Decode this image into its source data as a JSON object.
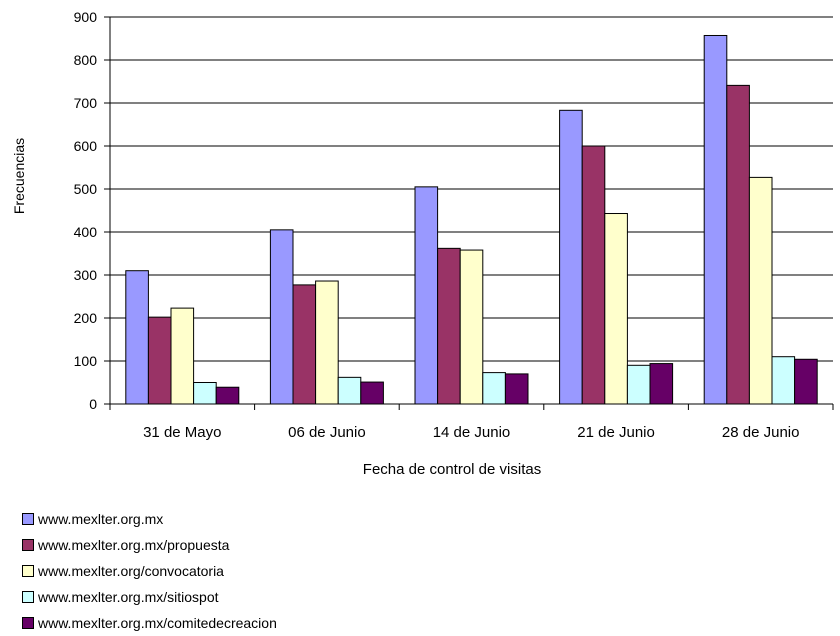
{
  "chart_data": {
    "type": "bar",
    "title": "",
    "xlabel": "Fecha de control de visitas",
    "ylabel": "Frecuencias",
    "ylim": [
      0,
      900
    ],
    "yticks": [
      0,
      100,
      200,
      300,
      400,
      500,
      600,
      700,
      800,
      900
    ],
    "grid": true,
    "legend_position": "bottom-left",
    "categories": [
      "31 de Mayo",
      "06 de Junio",
      "14 de Junio",
      "21 de Junio",
      "28 de Junio"
    ],
    "series": [
      {
        "name": "www.mexlter.org.mx",
        "color": "#9999ff",
        "values": [
          310,
          405,
          505,
          683,
          857
        ]
      },
      {
        "name": "www.mexlter.org.mx/propuesta",
        "color": "#993366",
        "values": [
          202,
          277,
          362,
          600,
          741
        ]
      },
      {
        "name": "www.mexlter.org/convocatoria",
        "color": "#ffffcc",
        "values": [
          223,
          286,
          358,
          443,
          527
        ]
      },
      {
        "name": "www.mexlter.org.mx/sitiospot",
        "color": "#ccffff",
        "values": [
          50,
          62,
          73,
          90,
          110
        ]
      },
      {
        "name": "www.mexlter.org.mx/comitedecreacion",
        "color": "#660066",
        "values": [
          39,
          51,
          70,
          94,
          104
        ]
      }
    ]
  }
}
